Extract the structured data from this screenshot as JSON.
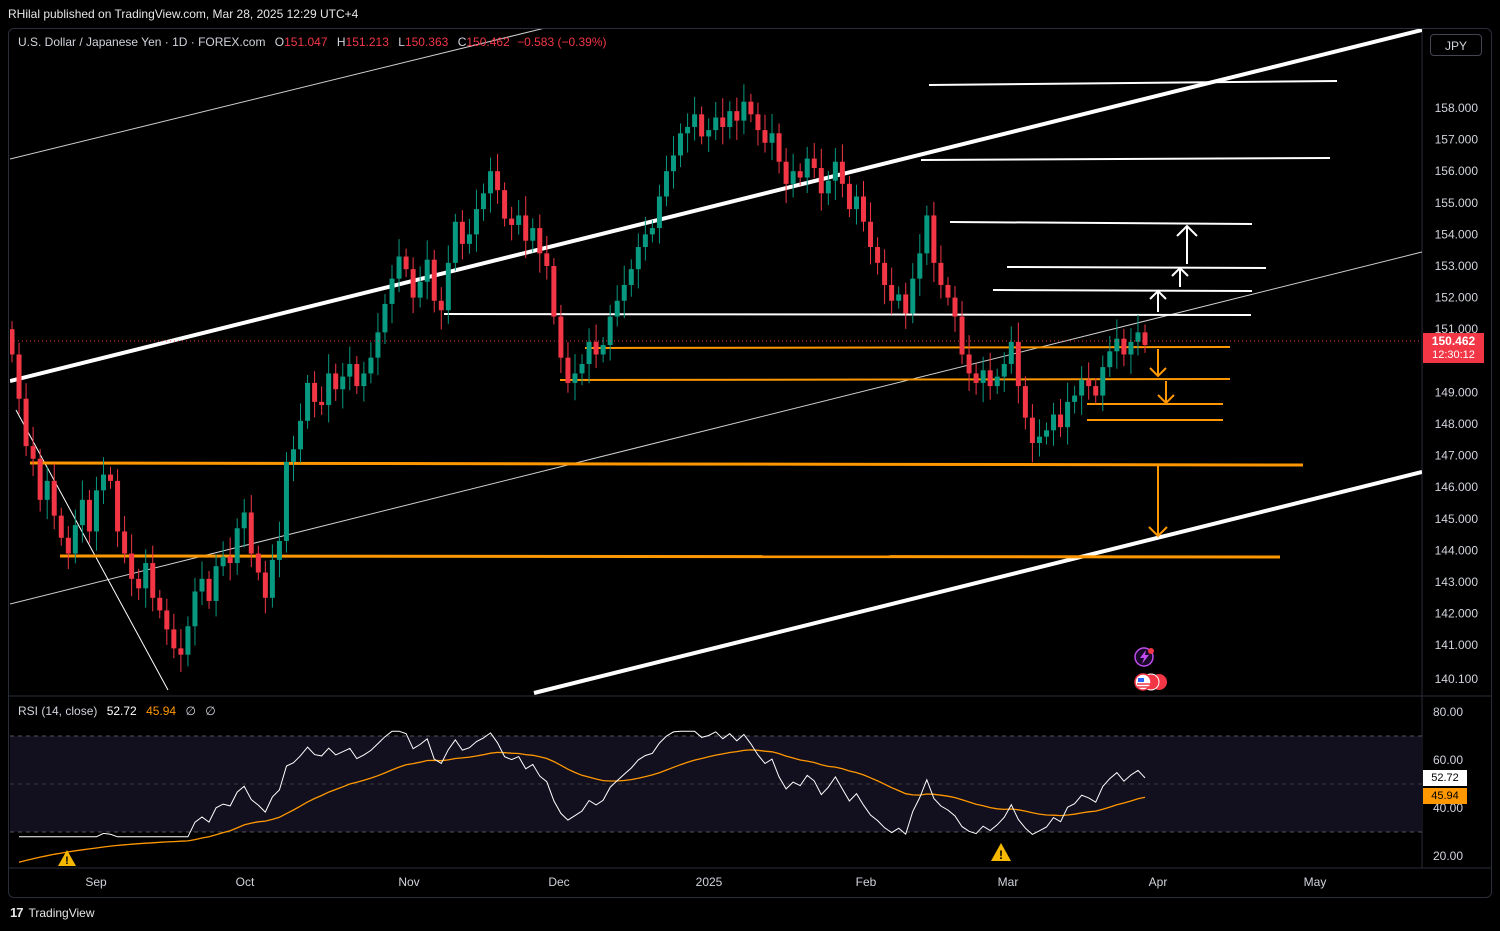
{
  "header": {
    "published": "RHilal published on TradingView.com, Mar 28, 2025 12:29 UTC+4"
  },
  "legend": {
    "symbol": "U.S. Dollar / Japanese Yen · 1D · FOREX.com",
    "o_label": "O",
    "o": "151.047",
    "h_label": "H",
    "h": "151.213",
    "l_label": "L",
    "l": "150.363",
    "c_label": "C",
    "c": "150.462",
    "change": "−0.583 (−0.39%)"
  },
  "currency_button": "JPY",
  "price_box": {
    "price": "150.462",
    "countdown": "12:30:12"
  },
  "rsi": {
    "label": "RSI (14, close)",
    "value": "52.72",
    "ma": "45.94",
    "extra1": "∅",
    "extra2": "∅"
  },
  "footer": {
    "brand": "TradingView"
  },
  "colors": {
    "bull": "#089981",
    "bear": "#f23645",
    "orange": "#ff9800",
    "white": "#ffffff",
    "bg": "#000000"
  },
  "chart_data": {
    "type": "candlestick",
    "title": "U.S. Dollar / Japanese Yen · 1D · FOREX.com",
    "price_axis": {
      "ticks": [
        "158.000",
        "157.000",
        "156.000",
        "155.000",
        "154.000",
        "153.000",
        "152.000",
        "151.000",
        "149.000",
        "148.000",
        "147.000",
        "146.000",
        "145.000",
        "144.000",
        "143.000",
        "142.000",
        "141.000",
        "140.100"
      ],
      "range": [
        140.1,
        158.0
      ]
    },
    "time_axis": [
      "Sep",
      "Oct",
      "Nov",
      "Dec",
      "2025",
      "Feb",
      "Mar",
      "Apr",
      "May"
    ],
    "closes": [
      150.2,
      148.8,
      147.3,
      146.9,
      145.6,
      146.2,
      145.1,
      144.4,
      143.9,
      144.8,
      145.6,
      144.6,
      145.9,
      146.4,
      146.2,
      144.6,
      143.9,
      143.1,
      142.8,
      143.6,
      142.5,
      142.1,
      141.5,
      140.9,
      140.7,
      141.6,
      142.7,
      143.1,
      142.4,
      143.5,
      143.8,
      143.6,
      144.7,
      145.2,
      143.9,
      143.3,
      142.5,
      143.7,
      144.3,
      146.8,
      147.2,
      148.1,
      149.3,
      148.7,
      148.6,
      149.6,
      149.1,
      149.5,
      149.9,
      149.2,
      149.6,
      150.1,
      150.9,
      151.8,
      152.6,
      153.3,
      152.9,
      152.0,
      152.5,
      153.2,
      151.9,
      151.6,
      153.1,
      154.4,
      153.7,
      154.0,
      154.8,
      155.3,
      156.0,
      155.4,
      154.5,
      154.3,
      154.6,
      153.8,
      154.2,
      153.4,
      153.0,
      151.4,
      150.1,
      149.3,
      149.6,
      149.9,
      150.6,
      150.2,
      150.5,
      151.4,
      151.9,
      152.4,
      152.9,
      153.6,
      154.0,
      154.2,
      155.2,
      156.0,
      156.5,
      157.2,
      157.4,
      157.8,
      157.1,
      157.3,
      157.7,
      157.4,
      157.9,
      157.6,
      158.2,
      157.8,
      157.3,
      156.9,
      157.2,
      156.3,
      155.6,
      156.0,
      155.8,
      156.4,
      156.1,
      155.3,
      155.7,
      156.3,
      155.6,
      154.8,
      155.2,
      154.4,
      153.6,
      153.1,
      152.4,
      151.9,
      152.1,
      151.5,
      152.6,
      153.4,
      154.6,
      153.1,
      152.4,
      152.0,
      151.4,
      150.2,
      149.6,
      149.3,
      149.7,
      149.2,
      149.5,
      149.9,
      150.6,
      149.2,
      148.2,
      147.4,
      147.6,
      147.8,
      148.3,
      147.9,
      148.7,
      148.9,
      149.4,
      149.2,
      148.9,
      149.8,
      150.3,
      150.7,
      150.2,
      150.6,
      150.9,
      150.5
    ],
    "key_levels": [
      156.9,
      155.2,
      153.9,
      152.9,
      152.1,
      151.3,
      150.4,
      149.3,
      148.5,
      148.0,
      146.6,
      143.7
    ],
    "rsi": {
      "axis_ticks": [
        "80.00",
        "60.00",
        "40.00",
        "20.00"
      ],
      "upper_band": 70,
      "mid": 50,
      "lower_band": 30,
      "value": 52.72,
      "ma": 45.94
    }
  }
}
